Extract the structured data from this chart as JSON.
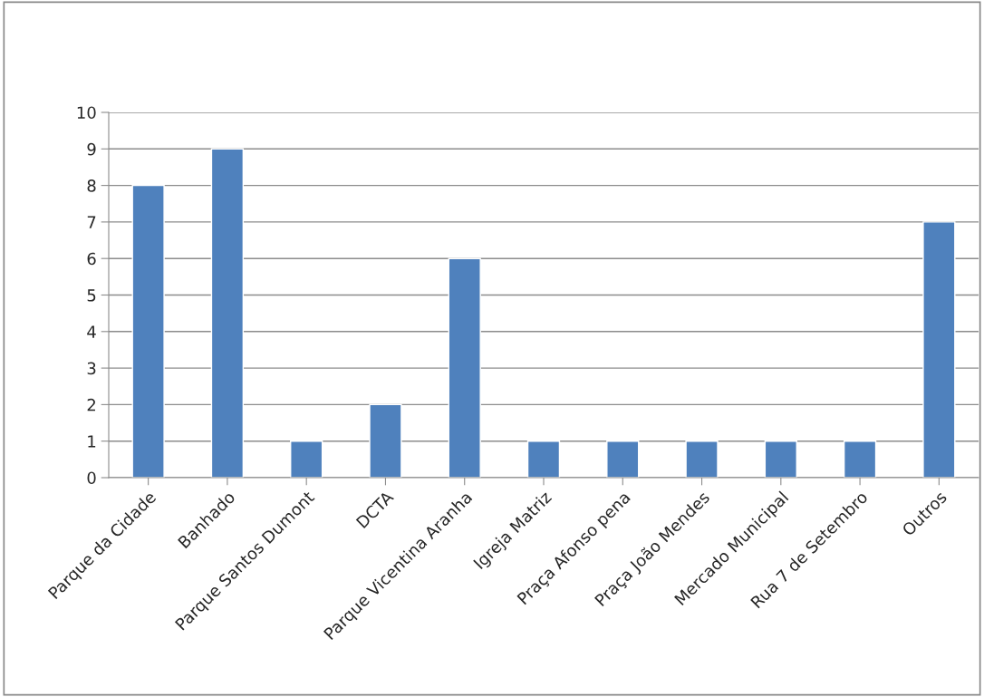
{
  "chart_data": {
    "type": "bar",
    "categories": [
      "Parque da Cidade",
      "Banhado",
      "Parque Santos Dumont",
      "DCTA",
      "Parque Vicentina Aranha",
      "Igreja Matriz",
      "Praça Afonso pena",
      "Praça João Mendes",
      "Mercado Municipal",
      "Rua 7 de Setembro",
      "Outros"
    ],
    "values": [
      8,
      9,
      1,
      2,
      6,
      1,
      1,
      1,
      1,
      1,
      7
    ],
    "color": "#4f81bd",
    "ylim": [
      0,
      10
    ],
    "yticks": [
      0,
      1,
      2,
      3,
      4,
      5,
      6,
      7,
      8,
      9,
      10
    ],
    "grid": "y",
    "legend": false
  }
}
